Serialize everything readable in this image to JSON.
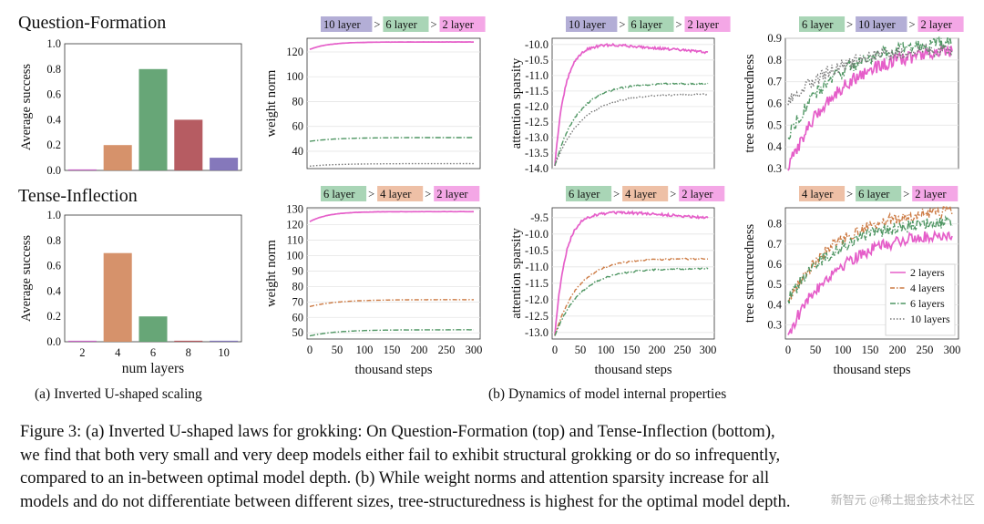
{
  "row_titles": [
    "Question-Formation",
    "Tense-Inflection"
  ],
  "subcaptions": {
    "a": "(a) Inverted U-shaped scaling",
    "b": "(b) Dynamics of model internal properties"
  },
  "caption": {
    "line1": "Figure 3: (a) Inverted U-shaped laws for grokking: On Question-Formation (top) and Tense-Inflection (bottom),",
    "line2": "we find that both very small and very deep models either fail to exhibit structural grokking or do so infrequently,",
    "line3": "compared to an in-between optimal model depth. (b) While weight norms and attention sparsity increase for all",
    "line4": "models and do not differentiate between different sizes, tree-structuredness is highest for the optimal model depth."
  },
  "watermark": "新智元 @稀土掘金技术社区",
  "colors": {
    "bar2": "#c75bc4",
    "bar4": "#d3895e",
    "bar6": "#5a9e6b",
    "bar8": "#b04e55",
    "bar10": "#7b6db5",
    "l2": "#e55ec9",
    "l4": "#cc7a43",
    "l6": "#4f9663",
    "l10": "#777777",
    "tag10": "#b3aed6",
    "tag6": "#a9d5b6",
    "tag4": "#eec0a6",
    "tag2": "#f4a7e6"
  },
  "legend": [
    "2 layers",
    "4 layers",
    "6 layers",
    "10 layers"
  ],
  "chart_data": [
    {
      "id": "qf-bar",
      "type": "bar",
      "categories": [
        "2",
        "4",
        "6",
        "8",
        "10"
      ],
      "values": [
        0.0,
        0.2,
        0.8,
        0.4,
        0.1
      ],
      "xlabel": "",
      "ylabel": "Average success",
      "ylim": [
        0,
        1.0
      ],
      "yticks": [
        "0.0",
        "0.2",
        "0.4",
        "0.6",
        "0.8",
        "1.0"
      ]
    },
    {
      "id": "qf-wn",
      "type": "line",
      "ranking": [
        "10 layer",
        "6 layer",
        "2 layer"
      ],
      "ylabel": "weight norm",
      "xlabel": "",
      "ylim": [
        26,
        131
      ],
      "yticks": [
        "40",
        "60",
        "80",
        "100",
        "120"
      ],
      "series": [
        {
          "name": "2 layers",
          "start": 122,
          "end": 128,
          "rate": 0.03
        },
        {
          "name": "6 layers",
          "start": 48,
          "end": 51,
          "rate": 0.02
        },
        {
          "name": "10 layers",
          "start": 28,
          "end": 30,
          "rate": 0.02
        }
      ]
    },
    {
      "id": "qf-as",
      "type": "line",
      "ranking": [
        "10 layer",
        "6 layer",
        "2 layer"
      ],
      "ylabel": "attention sparsity",
      "xlabel": "",
      "ylim": [
        -14.0,
        -9.8
      ],
      "yticks": [
        "-14.0",
        "-13.5",
        "-13.0",
        "-12.5",
        "-12.0",
        "-11.5",
        "-11.0",
        "-10.5",
        "-10.0"
      ],
      "series": [
        {
          "name": "2 layers",
          "start": -13.9,
          "end": -10.0,
          "rate": 0.05,
          "peak_at": 110,
          "final": -10.25
        },
        {
          "name": "6 layers",
          "start": -13.9,
          "end": -11.25,
          "rate": 0.022
        },
        {
          "name": "10 layers",
          "start": -13.9,
          "end": -11.6,
          "rate": 0.019
        }
      ]
    },
    {
      "id": "qf-ts",
      "type": "line",
      "ranking": [
        "6 layer",
        "10 layer",
        "2 layer"
      ],
      "ylabel": "tree structuredness",
      "xlabel": "",
      "ylim": [
        0.3,
        0.9
      ],
      "yticks": [
        "0.3",
        "0.4",
        "0.5",
        "0.6",
        "0.7",
        "0.8",
        "0.9"
      ],
      "series": [
        {
          "name": "2 layers",
          "start": 0.3,
          "end": 0.84
        },
        {
          "name": "6 layers",
          "start": 0.45,
          "end": 0.88
        },
        {
          "name": "10 layers",
          "start": 0.6,
          "end": 0.85
        }
      ]
    },
    {
      "id": "ti-bar",
      "type": "bar",
      "categories": [
        "2",
        "4",
        "6",
        "8",
        "10"
      ],
      "values": [
        0.0,
        0.7,
        0.2,
        0.0,
        0.0
      ],
      "xlabel": "num layers",
      "ylabel": "Average success",
      "ylim": [
        0,
        1.0
      ],
      "yticks": [
        "0.0",
        "0.2",
        "0.4",
        "0.6",
        "0.8",
        "1.0"
      ]
    },
    {
      "id": "ti-wn",
      "type": "line",
      "ranking": [
        "6 layer",
        "4 layer",
        "2 layer"
      ],
      "ylabel": "weight norm",
      "xlabel": "thousand steps",
      "ylim": [
        46,
        131
      ],
      "yticks": [
        "50",
        "60",
        "70",
        "80",
        "90",
        "100",
        "110",
        "120",
        "130"
      ],
      "xticks": [
        "0",
        "50",
        "100",
        "150",
        "200",
        "250",
        "300"
      ],
      "series": [
        {
          "name": "2 layers",
          "start": 122,
          "end": 128.5,
          "rate": 0.03
        },
        {
          "name": "4 layers",
          "start": 67,
          "end": 71.5,
          "rate": 0.02
        },
        {
          "name": "6 layers",
          "start": 48,
          "end": 52,
          "rate": 0.02
        }
      ]
    },
    {
      "id": "ti-as",
      "type": "line",
      "ranking": [
        "6 layer",
        "4 layer",
        "2 layer"
      ],
      "ylabel": "attention sparsity",
      "xlabel": "thousand steps",
      "ylim": [
        -13.2,
        -9.2
      ],
      "yticks": [
        "-13.0",
        "-12.5",
        "-12.0",
        "-11.5",
        "-11.0",
        "-10.5",
        "-10.0",
        "-9.5"
      ],
      "xticks": [
        "0",
        "50",
        "100",
        "150",
        "200",
        "250",
        "300"
      ],
      "series": [
        {
          "name": "2 layers",
          "start": -13.1,
          "end": -9.35,
          "rate": 0.05,
          "peak_at": 150,
          "final": -9.5
        },
        {
          "name": "4 layers",
          "start": -13.1,
          "end": -10.75,
          "rate": 0.022
        },
        {
          "name": "6 layers",
          "start": -13.1,
          "end": -11.05,
          "rate": 0.02
        }
      ]
    },
    {
      "id": "ti-ts",
      "type": "line",
      "ranking": [
        "4 layer",
        "6 layer",
        "2 layer"
      ],
      "ylabel": "tree structuredness",
      "xlabel": "thousand steps",
      "ylim": [
        0.23,
        0.88
      ],
      "yticks": [
        "0.3",
        "0.4",
        "0.5",
        "0.6",
        "0.7",
        "0.8"
      ],
      "xticks": [
        "0",
        "50",
        "100",
        "150",
        "200",
        "250",
        "300"
      ],
      "series": [
        {
          "name": "2 layers",
          "start": 0.25,
          "end": 0.75
        },
        {
          "name": "4 layers",
          "start": 0.42,
          "end": 0.86
        },
        {
          "name": "6 layers",
          "start": 0.42,
          "end": 0.81
        }
      ]
    }
  ]
}
